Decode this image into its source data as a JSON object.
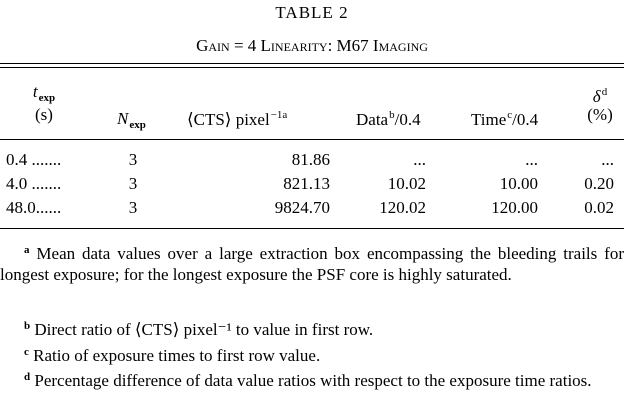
{
  "table": {
    "number": "TABLE 2",
    "caption": "Gain = 4 Linearity: M67 Imaging"
  },
  "columns": {
    "texp": {
      "symbol": "t",
      "sub": "exp",
      "unit": "(s)"
    },
    "nexp": {
      "symbol": "N",
      "sub": "exp"
    },
    "cts": {
      "label": "⟨CTS⟩ pixel",
      "sup": "−1a"
    },
    "data": {
      "label": "Data",
      "sup": "b",
      "suffix": "/0.4"
    },
    "time": {
      "label": "Time",
      "sup": "c",
      "suffix": "/0.4"
    },
    "delta": {
      "symbol": "δ",
      "sup": "d",
      "unit": "(%)"
    }
  },
  "rows": [
    {
      "texp": "0.4 .......",
      "nexp": "3",
      "cts": "81.86",
      "data": "...",
      "time": "...",
      "delta": "..."
    },
    {
      "texp": "4.0 .......",
      "nexp": "3",
      "cts": "821.13",
      "data": "10.02",
      "time": "10.00",
      "delta": "0.20"
    },
    {
      "texp": "48.0......",
      "nexp": "3",
      "cts": "9824.70",
      "data": "120.02",
      "time": "120.00",
      "delta": "0.02"
    }
  ],
  "notes": [
    {
      "mark": "a",
      "text": "Mean data values over a large extraction box encompassing the bleeding trails for longest exposure; for the longest exposure the PSF core is highly saturated."
    },
    {
      "mark": "b",
      "text": "Direct ratio of ⟨CTS⟩ pixel⁻¹ to value in first row."
    },
    {
      "mark": "c",
      "text": "Ratio of exposure times to first row value."
    },
    {
      "mark": "d",
      "text": "Percentage difference of data value ratios with respect to the exposure time ratios."
    }
  ]
}
